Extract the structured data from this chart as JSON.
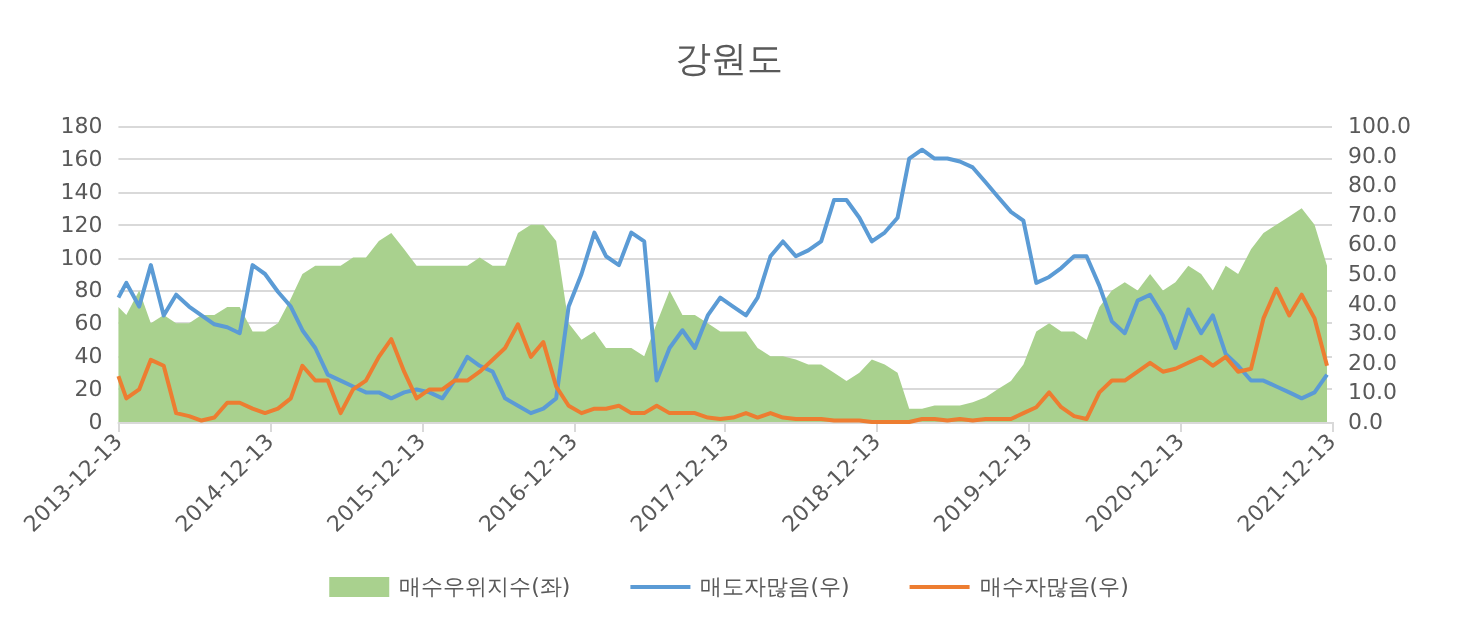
{
  "chart_data": {
    "type": "line",
    "title": "강원도",
    "x": [
      "2013-12-13",
      "2014-01",
      "2014-02",
      "2014-03",
      "2014-04",
      "2014-05",
      "2014-06",
      "2014-07",
      "2014-08",
      "2014-09",
      "2014-10",
      "2014-11",
      "2014-12",
      "2015-01",
      "2015-02",
      "2015-03",
      "2015-04",
      "2015-05",
      "2015-06",
      "2015-07",
      "2015-08",
      "2015-09",
      "2015-10",
      "2015-11",
      "2015-12",
      "2016-01",
      "2016-02",
      "2016-03",
      "2016-04",
      "2016-05",
      "2016-06",
      "2016-07",
      "2016-08",
      "2016-09",
      "2016-10",
      "2016-11",
      "2016-12",
      "2017-01",
      "2017-02",
      "2017-03",
      "2017-04",
      "2017-05",
      "2017-06",
      "2017-07",
      "2017-08",
      "2017-09",
      "2017-10",
      "2017-11",
      "2017-12",
      "2018-01",
      "2018-02",
      "2018-03",
      "2018-04",
      "2018-05",
      "2018-06",
      "2018-07",
      "2018-08",
      "2018-09",
      "2018-10",
      "2018-11",
      "2018-12",
      "2019-01",
      "2019-02",
      "2019-03",
      "2019-04",
      "2019-05",
      "2019-06",
      "2019-07",
      "2019-08",
      "2019-09",
      "2019-10",
      "2019-11",
      "2019-12",
      "2020-01",
      "2020-02",
      "2020-03",
      "2020-04",
      "2020-05",
      "2020-06",
      "2020-07",
      "2020-08",
      "2020-09",
      "2020-10",
      "2020-11",
      "2020-12",
      "2021-01",
      "2021-02",
      "2021-03",
      "2021-04",
      "2021-05",
      "2021-06",
      "2021-07",
      "2021-08",
      "2021-09",
      "2021-10",
      "2021-11",
      "2021-12"
    ],
    "series": [
      {
        "name": "매수우위지수(좌)",
        "type": "area",
        "color": "#a9d18e",
        "values": [
          70,
          65,
          80,
          60,
          65,
          60,
          60,
          65,
          65,
          70,
          70,
          55,
          55,
          60,
          75,
          90,
          95,
          95,
          95,
          100,
          100,
          110,
          115,
          105,
          95,
          95,
          95,
          95,
          95,
          100,
          95,
          95,
          115,
          120,
          120,
          110,
          60,
          50,
          55,
          45,
          45,
          45,
          40,
          60,
          80,
          65,
          65,
          60,
          55,
          55,
          55,
          45,
          40,
          40,
          38,
          35,
          35,
          30,
          25,
          30,
          38,
          35,
          30,
          8,
          8,
          10,
          10,
          10,
          12,
          15,
          20,
          25,
          35,
          55,
          60,
          55,
          55,
          50,
          70,
          80,
          85,
          80,
          90,
          80,
          85,
          95,
          90,
          80,
          95,
          90,
          105,
          115,
          120,
          125,
          130,
          120,
          95
        ]
      },
      {
        "name": "매도자많음(우)",
        "type": "line",
        "axis": "y2",
        "color": "#5b9bd5",
        "values": [
          42,
          47,
          39,
          53,
          36,
          43,
          39,
          36,
          33,
          32,
          30,
          53,
          50,
          44,
          39,
          31,
          25,
          16,
          14,
          12,
          10,
          10,
          8,
          10,
          11,
          10,
          8,
          14,
          22,
          19,
          17,
          8,
          5.5,
          3,
          4.5,
          8,
          39,
          50,
          64,
          56,
          53,
          64,
          61,
          14,
          25,
          31,
          25,
          36,
          42,
          39,
          36,
          42,
          56,
          61,
          56,
          58,
          61,
          75,
          75,
          69,
          61,
          64,
          69,
          89,
          92,
          89,
          89,
          88,
          86,
          81,
          76,
          71,
          68,
          47,
          49,
          52,
          56,
          56,
          46,
          34,
          30,
          41,
          43,
          36,
          25,
          38,
          30,
          36,
          23,
          19,
          14,
          14,
          12,
          10,
          8,
          10,
          16
        ]
      },
      {
        "name": "매수자많음(우)",
        "type": "line",
        "axis": "y2",
        "color": "#ed7d31",
        "values": [
          15.5,
          8,
          11,
          21,
          19,
          3,
          2,
          0.5,
          1.5,
          6.5,
          6.5,
          4.5,
          3,
          4.5,
          8,
          19,
          14,
          14,
          3,
          11,
          14,
          22,
          28,
          17,
          8,
          11,
          11,
          14,
          14,
          17,
          21,
          25,
          33,
          22,
          27,
          12,
          5.5,
          3,
          4.5,
          4.5,
          5.5,
          3,
          3,
          5.5,
          3,
          3,
          3,
          1.5,
          1,
          1.5,
          3,
          1.5,
          3,
          1.5,
          1,
          1,
          1,
          0.5,
          0.5,
          0.5,
          0,
          0,
          0,
          0,
          1,
          1,
          0.5,
          1,
          0.5,
          1,
          1,
          1,
          3,
          5,
          10,
          5,
          2,
          1,
          10,
          14,
          14,
          17,
          20,
          17,
          18,
          20,
          22,
          19,
          22,
          17,
          18,
          35,
          45,
          36,
          43,
          35,
          19
        ]
      }
    ],
    "xlim": [
      "2013-12-13",
      "2021-12-13"
    ],
    "xticks": [
      "2013-12-13",
      "2014-12-13",
      "2015-12-13",
      "2016-12-13",
      "2017-12-13",
      "2018-12-13",
      "2019-12-13",
      "2020-12-13",
      "2021-12-13"
    ],
    "ylim": [
      0,
      180
    ],
    "yticks": [
      0,
      20,
      40,
      60,
      80,
      100,
      120,
      140,
      160,
      180
    ],
    "y2lim": [
      0,
      100
    ],
    "y2ticks": [
      {
        "value": 0,
        "label": "0.0"
      },
      {
        "value": 10,
        "label": "10.0"
      },
      {
        "value": 20,
        "label": "20.0"
      },
      {
        "value": 30,
        "label": "30.0"
      },
      {
        "value": 40,
        "label": "40.0"
      },
      {
        "value": 50,
        "label": "50.0"
      },
      {
        "value": 60,
        "label": "60.0"
      },
      {
        "value": 70,
        "label": "70.0"
      },
      {
        "value": 80,
        "label": "80.0"
      },
      {
        "value": 90,
        "label": "90.0"
      },
      {
        "value": 100,
        "label": "100.0"
      }
    ],
    "grid": "y",
    "legend": "bottom",
    "marker": "none",
    "line_style": "solid"
  }
}
